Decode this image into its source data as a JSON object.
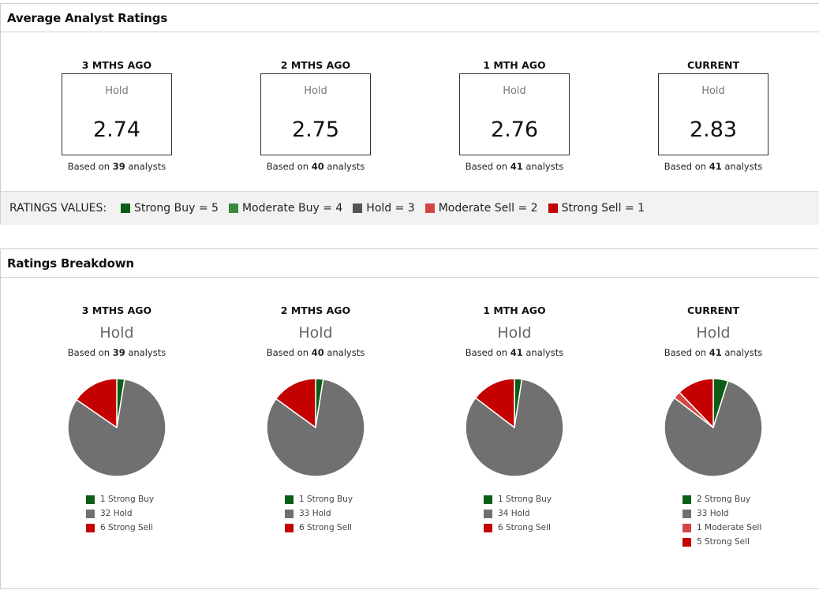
{
  "average_ratings": {
    "title": "Average Analyst Ratings",
    "periods": [
      {
        "period": "3 MTHS AGO",
        "rating": "Hold",
        "score": "2.74",
        "based_prefix": "Based on",
        "analysts": "39",
        "based_suffix": "analysts"
      },
      {
        "period": "2 MTHS AGO",
        "rating": "Hold",
        "score": "2.75",
        "based_prefix": "Based on",
        "analysts": "40",
        "based_suffix": "analysts"
      },
      {
        "period": "1 MTH AGO",
        "rating": "Hold",
        "score": "2.76",
        "based_prefix": "Based on",
        "analysts": "41",
        "based_suffix": "analysts"
      },
      {
        "period": "CURRENT",
        "rating": "Hold",
        "score": "2.83",
        "based_prefix": "Based on",
        "analysts": "41",
        "based_suffix": "analysts"
      }
    ]
  },
  "ratings_values": {
    "title": "RATINGS VALUES:",
    "items": [
      {
        "label": "Strong Buy = 5",
        "color": "#0b5e15"
      },
      {
        "label": "Moderate Buy = 4",
        "color": "#3a8a3e"
      },
      {
        "label": "Hold = 3",
        "color": "#555555"
      },
      {
        "label": "Moderate Sell = 2",
        "color": "#d64545"
      },
      {
        "label": "Strong Sell = 1",
        "color": "#c40000"
      }
    ]
  },
  "breakdown": {
    "title": "Ratings Breakdown"
  },
  "colors": {
    "strong_buy": "#0b5e15",
    "moderate_buy": "#3a8a3e",
    "hold": "#707070",
    "moderate_sell": "#d64545",
    "strong_sell": "#c40000"
  },
  "chart_data": [
    {
      "type": "pie",
      "title": "3 MTHS AGO",
      "rating": "Hold",
      "based_prefix": "Based on",
      "analysts": "39",
      "based_suffix": "analysts",
      "slices": [
        {
          "label": "Strong Buy",
          "value": 1,
          "legend": "1 Strong Buy",
          "color": "#0b5e15"
        },
        {
          "label": "Hold",
          "value": 32,
          "legend": "32 Hold",
          "color": "#707070"
        },
        {
          "label": "Strong Sell",
          "value": 6,
          "legend": "6 Strong Sell",
          "color": "#c40000"
        }
      ]
    },
    {
      "type": "pie",
      "title": "2 MTHS AGO",
      "rating": "Hold",
      "based_prefix": "Based on",
      "analysts": "40",
      "based_suffix": "analysts",
      "slices": [
        {
          "label": "Strong Buy",
          "value": 1,
          "legend": "1 Strong Buy",
          "color": "#0b5e15"
        },
        {
          "label": "Hold",
          "value": 33,
          "legend": "33 Hold",
          "color": "#707070"
        },
        {
          "label": "Strong Sell",
          "value": 6,
          "legend": "6 Strong Sell",
          "color": "#c40000"
        }
      ]
    },
    {
      "type": "pie",
      "title": "1 MTH AGO",
      "rating": "Hold",
      "based_prefix": "Based on",
      "analysts": "41",
      "based_suffix": "analysts",
      "slices": [
        {
          "label": "Strong Buy",
          "value": 1,
          "legend": "1 Strong Buy",
          "color": "#0b5e15"
        },
        {
          "label": "Hold",
          "value": 34,
          "legend": "34 Hold",
          "color": "#707070"
        },
        {
          "label": "Strong Sell",
          "value": 6,
          "legend": "6 Strong Sell",
          "color": "#c40000"
        }
      ]
    },
    {
      "type": "pie",
      "title": "CURRENT",
      "rating": "Hold",
      "based_prefix": "Based on",
      "analysts": "41",
      "based_suffix": "analysts",
      "slices": [
        {
          "label": "Strong Buy",
          "value": 2,
          "legend": "2 Strong Buy",
          "color": "#0b5e15"
        },
        {
          "label": "Hold",
          "value": 33,
          "legend": "33 Hold",
          "color": "#707070"
        },
        {
          "label": "Moderate Sell",
          "value": 1,
          "legend": "1 Moderate Sell",
          "color": "#d64545"
        },
        {
          "label": "Strong Sell",
          "value": 5,
          "legend": "5 Strong Sell",
          "color": "#c40000"
        }
      ]
    }
  ]
}
